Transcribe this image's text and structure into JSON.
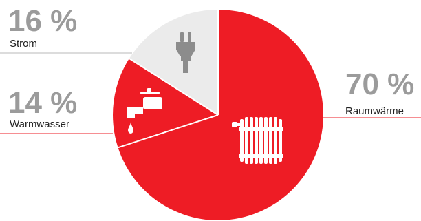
{
  "chart_data": {
    "type": "pie",
    "title": "",
    "start_angle_deg": 0,
    "direction": "clockwise",
    "slices": [
      {
        "label": "Raumwärme",
        "value": 70,
        "value_text": "70 %",
        "color": "#ee1c25",
        "icon": "radiator-icon"
      },
      {
        "label": "Warmwasser",
        "value": 14,
        "value_text": "14 %",
        "color": "#ee1c25",
        "icon": "water-tap-icon"
      },
      {
        "label": "Strom",
        "value": 16,
        "value_text": "16 %",
        "color": "#ebebeb",
        "icon": "electric-plug-icon"
      }
    ],
    "colors": {
      "accent": "#ee1c25",
      "neutral_slice": "#ebebeb",
      "percent_text": "#9b9b9b",
      "label_text": "#222222",
      "neutral_line": "#b9b9b9",
      "icon_on_red": "#ffffff",
      "icon_on_grey": "#8c8c8c"
    }
  }
}
